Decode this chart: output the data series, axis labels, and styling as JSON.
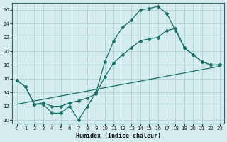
{
  "xlabel": "Humidex (Indice chaleur)",
  "background_color": "#d4ecee",
  "grid_color": "#aacccc",
  "line_color": "#1a7068",
  "xlim": [
    -0.5,
    23.5
  ],
  "ylim": [
    9.5,
    27.0
  ],
  "xticks": [
    0,
    1,
    2,
    3,
    4,
    5,
    6,
    7,
    8,
    9,
    10,
    11,
    12,
    13,
    14,
    15,
    16,
    17,
    18,
    19,
    20,
    21,
    22,
    23
  ],
  "yticks": [
    10,
    12,
    14,
    16,
    18,
    20,
    22,
    24,
    26
  ],
  "line1_x": [
    0,
    1,
    2,
    3,
    4,
    5,
    6,
    7,
    8,
    9,
    10,
    11,
    12,
    13,
    14,
    15,
    16,
    17,
    18,
    19,
    20,
    21,
    22,
    23
  ],
  "line1_y": [
    15.8,
    14.8,
    12.3,
    12.3,
    11.0,
    11.0,
    12.0,
    10.0,
    12.0,
    14.0,
    18.5,
    21.5,
    23.5,
    24.5,
    26.0,
    26.2,
    26.5,
    25.5,
    23.0,
    20.5,
    19.5,
    18.5,
    18.0,
    18.0
  ],
  "line2_x": [
    0,
    1,
    2,
    3,
    4,
    5,
    6,
    7,
    8,
    9,
    10,
    11,
    12,
    13,
    14,
    15,
    16,
    17,
    18,
    19,
    20,
    21,
    22,
    23
  ],
  "line2_y": [
    15.8,
    14.8,
    12.3,
    12.5,
    12.0,
    12.0,
    12.5,
    12.8,
    13.2,
    13.8,
    16.3,
    18.3,
    19.5,
    20.5,
    21.5,
    21.8,
    22.0,
    23.0,
    23.3,
    20.5,
    19.5,
    18.5,
    18.0,
    18.0
  ],
  "line3_x": [
    0,
    23
  ],
  "line3_y": [
    12.3,
    17.8
  ]
}
